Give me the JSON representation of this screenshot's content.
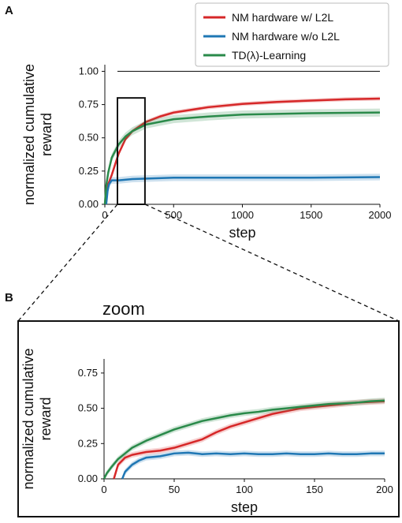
{
  "panel_a_label": "A",
  "panel_b_label": "B",
  "zoom_title": "zoom",
  "colors": {
    "nm_with_l2l": "#d62728",
    "nm_without_l2l": "#1f77b4",
    "td_lambda": "#2a8a4a",
    "reference_line": "#222222"
  },
  "chart_data": [
    {
      "panel": "A",
      "type": "line",
      "xlabel": "step",
      "ylabel": "normalized cumulative reward",
      "xlim": [
        0,
        2000
      ],
      "ylim": [
        0,
        1.05
      ],
      "xticks": [
        "0",
        "500",
        "1000",
        "1500",
        "2000"
      ],
      "yticks": [
        "0.00",
        "0.25",
        "0.50",
        "0.75",
        "1.00"
      ],
      "legend": {
        "placement": "top-right"
      },
      "reference_line": {
        "y": 1.0
      },
      "zoom_box": {
        "x": [
          0,
          200
        ],
        "y": [
          0,
          0.8
        ]
      },
      "series": [
        {
          "name": "NM hardware w/ L2L",
          "color_key": "nm_with_l2l",
          "band": 0.015,
          "points": [
            [
              5,
              0.0
            ],
            [
              10,
              0.08
            ],
            [
              20,
              0.14
            ],
            [
              50,
              0.22
            ],
            [
              100,
              0.38
            ],
            [
              150,
              0.49
            ],
            [
              200,
              0.55
            ],
            [
              300,
              0.62
            ],
            [
              400,
              0.66
            ],
            [
              500,
              0.69
            ],
            [
              750,
              0.73
            ],
            [
              1000,
              0.755
            ],
            [
              1250,
              0.77
            ],
            [
              1500,
              0.78
            ],
            [
              1750,
              0.79
            ],
            [
              2000,
              0.795
            ]
          ]
        },
        {
          "name": "NM hardware w/o L2L",
          "color_key": "nm_without_l2l",
          "band": 0.025,
          "points": [
            [
              10,
              0.0
            ],
            [
              20,
              0.1
            ],
            [
              30,
              0.15
            ],
            [
              50,
              0.18
            ],
            [
              100,
              0.18
            ],
            [
              200,
              0.19
            ],
            [
              500,
              0.2
            ],
            [
              1000,
              0.2
            ],
            [
              1500,
              0.2
            ],
            [
              2000,
              0.205
            ]
          ]
        },
        {
          "name": "TD(λ)-Learning",
          "color_key": "td_lambda",
          "band": 0.03,
          "points": [
            [
              0,
              0.0
            ],
            [
              10,
              0.14
            ],
            [
              25,
              0.24
            ],
            [
              50,
              0.35
            ],
            [
              100,
              0.45
            ],
            [
              150,
              0.51
            ],
            [
              200,
              0.55
            ],
            [
              300,
              0.6
            ],
            [
              500,
              0.64
            ],
            [
              750,
              0.66
            ],
            [
              1000,
              0.675
            ],
            [
              1500,
              0.685
            ],
            [
              2000,
              0.69
            ]
          ]
        }
      ]
    },
    {
      "panel": "B",
      "type": "line",
      "xlabel": "step",
      "ylabel": "normalized cumulative reward",
      "xlim": [
        0,
        200
      ],
      "ylim": [
        0,
        0.85
      ],
      "xticks": [
        "0",
        "50",
        "100",
        "150",
        "200"
      ],
      "yticks": [
        "0.00",
        "0.25",
        "0.50",
        "0.75"
      ],
      "series": [
        {
          "name": "NM hardware w/ L2L",
          "color_key": "nm_with_l2l",
          "band": 0.02,
          "points": [
            [
              7,
              0.0
            ],
            [
              10,
              0.1
            ],
            [
              15,
              0.15
            ],
            [
              20,
              0.17
            ],
            [
              30,
              0.19
            ],
            [
              40,
              0.2
            ],
            [
              50,
              0.22
            ],
            [
              60,
              0.25
            ],
            [
              70,
              0.28
            ],
            [
              80,
              0.33
            ],
            [
              90,
              0.37
            ],
            [
              100,
              0.4
            ],
            [
              110,
              0.43
            ],
            [
              120,
              0.46
            ],
            [
              130,
              0.48
            ],
            [
              140,
              0.5
            ],
            [
              150,
              0.51
            ],
            [
              160,
              0.52
            ],
            [
              170,
              0.53
            ],
            [
              180,
              0.54
            ],
            [
              190,
              0.545
            ],
            [
              200,
              0.55
            ]
          ]
        },
        {
          "name": "NM hardware w/o L2L",
          "color_key": "nm_without_l2l",
          "band": 0.02,
          "points": [
            [
              13,
              0.0
            ],
            [
              15,
              0.05
            ],
            [
              20,
              0.1
            ],
            [
              25,
              0.13
            ],
            [
              30,
              0.15
            ],
            [
              40,
              0.16
            ],
            [
              50,
              0.18
            ],
            [
              60,
              0.185
            ],
            [
              70,
              0.175
            ],
            [
              80,
              0.18
            ],
            [
              90,
              0.175
            ],
            [
              100,
              0.18
            ],
            [
              110,
              0.175
            ],
            [
              120,
              0.175
            ],
            [
              130,
              0.18
            ],
            [
              140,
              0.175
            ],
            [
              150,
              0.175
            ],
            [
              160,
              0.18
            ],
            [
              170,
              0.175
            ],
            [
              180,
              0.175
            ],
            [
              190,
              0.18
            ],
            [
              200,
              0.18
            ]
          ]
        },
        {
          "name": "TD(λ)-Learning",
          "color_key": "td_lambda",
          "band": 0.02,
          "points": [
            [
              0,
              0.0
            ],
            [
              2,
              0.04
            ],
            [
              5,
              0.08
            ],
            [
              10,
              0.14
            ],
            [
              15,
              0.18
            ],
            [
              20,
              0.22
            ],
            [
              30,
              0.27
            ],
            [
              40,
              0.31
            ],
            [
              50,
              0.35
            ],
            [
              60,
              0.38
            ],
            [
              70,
              0.41
            ],
            [
              80,
              0.43
            ],
            [
              90,
              0.45
            ],
            [
              100,
              0.465
            ],
            [
              110,
              0.475
            ],
            [
              120,
              0.49
            ],
            [
              130,
              0.5
            ],
            [
              140,
              0.51
            ],
            [
              150,
              0.52
            ],
            [
              160,
              0.53
            ],
            [
              170,
              0.535
            ],
            [
              180,
              0.54
            ],
            [
              190,
              0.55
            ],
            [
              200,
              0.555
            ]
          ]
        }
      ]
    }
  ]
}
